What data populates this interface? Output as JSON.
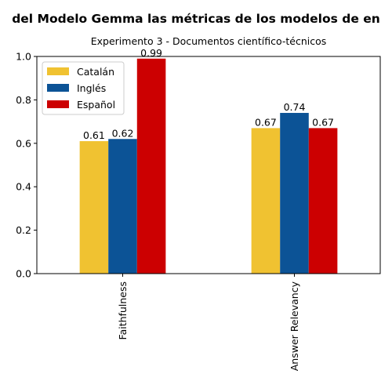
{
  "chart_data": {
    "type": "bar",
    "title": "del Modelo Gemma las métricas de los modelos de en",
    "subtitle": "Experimento 3 - Documentos científico-técnicos",
    "categories": [
      "Faithfulness",
      "Answer Relevancy"
    ],
    "series": [
      {
        "name": "Catalán",
        "color": "#F0C231",
        "values": [
          0.61,
          0.67
        ],
        "labels": [
          "0.61",
          "0.67"
        ]
      },
      {
        "name": "Inglés",
        "color": "#0C5396",
        "values": [
          0.62,
          0.74
        ],
        "labels": [
          "0.62",
          "0.74"
        ]
      },
      {
        "name": "Español",
        "color": "#CC0001",
        "values": [
          0.99,
          0.67
        ],
        "labels": [
          "0.99",
          "0.67"
        ]
      }
    ],
    "ylim": [
      0,
      1.0
    ],
    "yticks": [
      "0.0",
      "0.2",
      "0.4",
      "0.6",
      "0.8",
      "1.0"
    ],
    "xlabel": "",
    "ylabel": "",
    "legend_position": "top-left",
    "grid": false
  }
}
